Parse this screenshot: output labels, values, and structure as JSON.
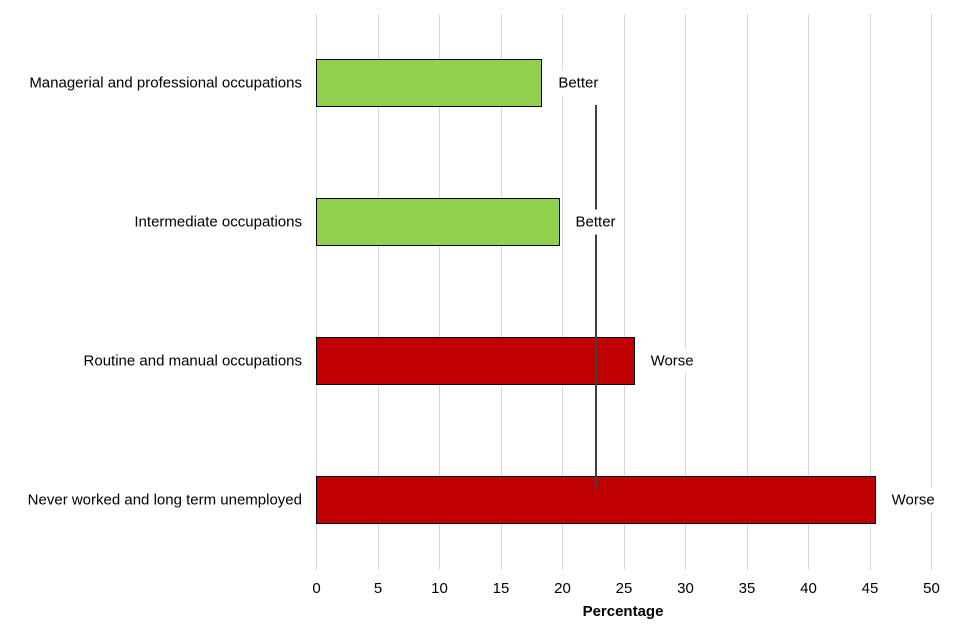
{
  "chart_data": {
    "type": "bar",
    "orientation": "horizontal",
    "title": "",
    "xlabel": "Percentage",
    "ylabel": "",
    "xlim": [
      0,
      50
    ],
    "xticks": [
      0,
      5,
      10,
      15,
      20,
      25,
      30,
      35,
      40,
      45,
      50
    ],
    "grid": "vertical",
    "legend": "none",
    "categories": [
      "Managerial and professional occupations",
      "Intermediate occupations",
      "Routine and manual occupations",
      "Never worked and long term unemployed"
    ],
    "values": [
      18.4,
      19.8,
      25.9,
      45.5
    ],
    "annotations": [
      "Better",
      "Better",
      "Worse",
      "Worse"
    ],
    "bar_colors": [
      "#92d050",
      "#92d050",
      "#c00000",
      "#c00000"
    ],
    "reference_line": {
      "value": 22.8,
      "color": "#404040",
      "description": "comparator average"
    }
  },
  "colors": {
    "better": "#92d050",
    "worse": "#c00000",
    "grid": "#d9d9d9",
    "reference": "#404040"
  }
}
